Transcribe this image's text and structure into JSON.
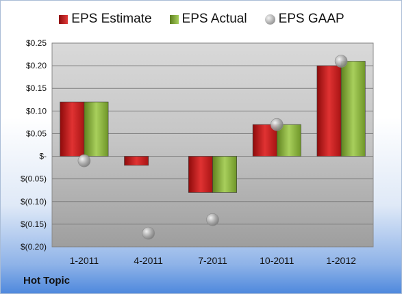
{
  "chart_data": {
    "type": "bar",
    "categories": [
      "1-2011",
      "4-2011",
      "7-2011",
      "10-2011",
      "1-2012"
    ],
    "series": [
      {
        "name": "EPS Estimate",
        "type": "bar",
        "color": "#c81f1f",
        "values": [
          0.12,
          -0.02,
          -0.08,
          0.07,
          0.2
        ]
      },
      {
        "name": "EPS Actual",
        "type": "bar",
        "color": "#8db646",
        "values": [
          0.12,
          null,
          -0.08,
          0.07,
          0.21
        ]
      },
      {
        "name": "EPS GAAP",
        "type": "scatter",
        "color": "#a8a8a8",
        "values": [
          -0.01,
          -0.17,
          -0.14,
          0.07,
          0.21
        ]
      }
    ],
    "ylim": [
      -0.2,
      0.25
    ],
    "yticks": [
      0.25,
      0.2,
      0.15,
      0.1,
      0.05,
      0,
      -0.05,
      -0.1,
      -0.15,
      -0.2
    ],
    "ytick_labels": [
      "$0.25",
      "$0.20",
      "$0.15",
      "$0.10",
      "$0.05",
      "$-",
      "$(0.05)",
      "$(0.10)",
      "$(0.15)",
      "$(0.20)"
    ],
    "grid": true,
    "legend_position": "top"
  },
  "legend": {
    "estimate": "EPS Estimate",
    "actual": "EPS Actual",
    "gaap": "EPS GAAP"
  },
  "company_label": "Hot Topic"
}
